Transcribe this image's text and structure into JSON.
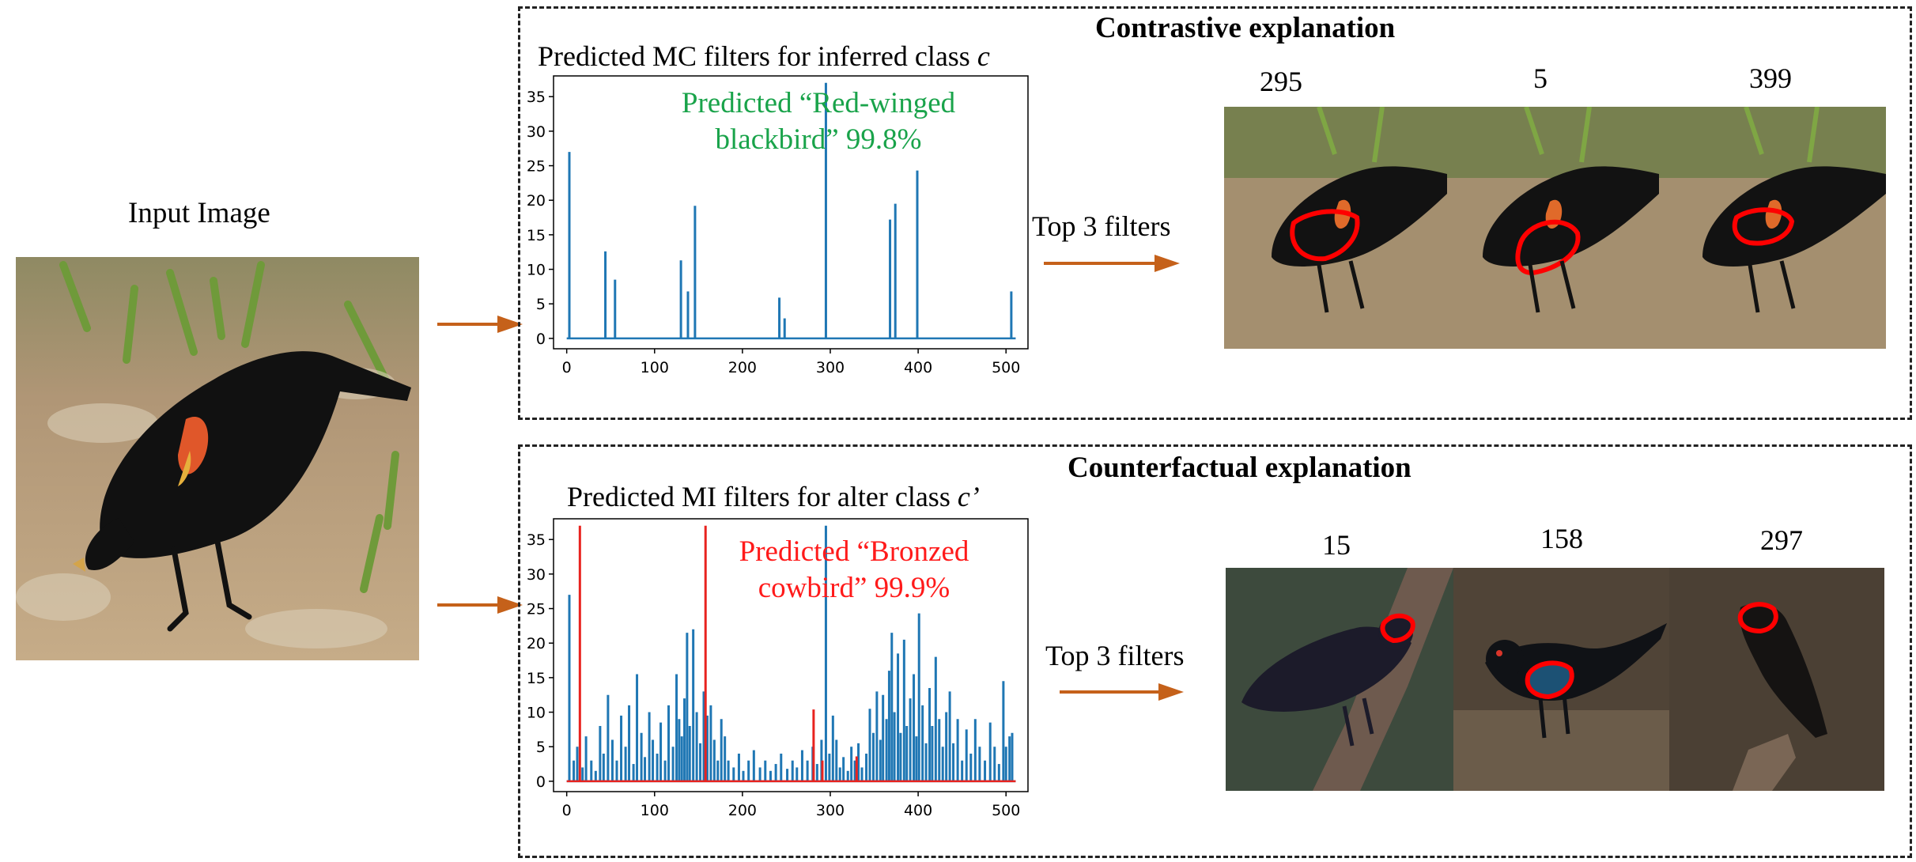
{
  "input": {
    "label": "Input Image"
  },
  "contrastive": {
    "title": "Contrastive explanation",
    "chart_heading": "Predicted MC filters for inferred class",
    "chart_heading_symbol": "c",
    "prediction_line1": "Predicted “Red-winged",
    "prediction_line2": "blackbird” 99.8%",
    "prediction_color": "#19a34a",
    "top_label": "Top 3 filters",
    "filters": [
      "295",
      "5",
      "399"
    ]
  },
  "counterfactual": {
    "title": "Counterfactual explanation",
    "chart_heading": "Predicted MI filters for alter class",
    "chart_heading_symbol": "c’",
    "prediction_line1": "Predicted “Bronzed",
    "prediction_line2": "cowbird” 99.9%",
    "prediction_color": "#ff1a1a",
    "top_label": "Top 3 filters",
    "filters": [
      "15",
      "158",
      "297"
    ]
  },
  "colors": {
    "series_blue": "#1f77b4",
    "series_red": "#e8231f",
    "arrow": "#c5611a",
    "outline": "#ff0000"
  },
  "chart_data": [
    {
      "type": "bar",
      "xticks": [
        "0",
        "100",
        "200",
        "300",
        "400",
        "500"
      ],
      "yticks": [
        "0",
        "5",
        "10",
        "15",
        "20",
        "25",
        "30",
        "35"
      ],
      "xlim": [
        -15,
        525
      ],
      "ylim": [
        -1.5,
        38
      ],
      "series": [
        {
          "color": "#1f77b4",
          "points": [
            [
              3,
              27
            ],
            [
              44,
              12.6
            ],
            [
              55,
              8.5
            ],
            [
              130,
              11.3
            ],
            [
              138,
              6.8
            ],
            [
              146,
              19.2
            ],
            [
              242,
              5.9
            ],
            [
              248,
              2.9
            ],
            [
              295,
              37
            ],
            [
              368,
              17.2
            ],
            [
              374,
              19.5
            ],
            [
              399,
              24.3
            ],
            [
              506,
              6.8
            ]
          ]
        }
      ]
    },
    {
      "type": "bar",
      "xticks": [
        "0",
        "100",
        "200",
        "300",
        "400",
        "500"
      ],
      "yticks": [
        "0",
        "5",
        "10",
        "15",
        "20",
        "25",
        "30",
        "35"
      ],
      "xlim": [
        -15,
        525
      ],
      "ylim": [
        -1.5,
        38
      ],
      "series": [
        {
          "color": "#1f77b4",
          "points": [
            [
              3,
              27
            ],
            [
              8,
              3
            ],
            [
              12,
              5
            ],
            [
              18,
              2
            ],
            [
              22,
              6.5
            ],
            [
              28,
              3
            ],
            [
              33,
              1.5
            ],
            [
              38,
              8
            ],
            [
              42,
              4
            ],
            [
              47,
              12.5
            ],
            [
              52,
              6
            ],
            [
              57,
              3
            ],
            [
              62,
              9.5
            ],
            [
              67,
              5
            ],
            [
              71,
              11
            ],
            [
              76,
              2.5
            ],
            [
              80,
              15.5
            ],
            [
              85,
              7
            ],
            [
              89,
              3.5
            ],
            [
              94,
              10
            ],
            [
              98,
              6
            ],
            [
              103,
              4
            ],
            [
              107,
              8.5
            ],
            [
              112,
              3
            ],
            [
              116,
              11
            ],
            [
              121,
              5
            ],
            [
              125,
              15.5
            ],
            [
              128,
              9
            ],
            [
              131,
              6.5
            ],
            [
              134,
              12
            ],
            [
              137,
              21.5
            ],
            [
              140,
              8
            ],
            [
              144,
              22
            ],
            [
              148,
              10
            ],
            [
              152,
              5.5
            ],
            [
              156,
              13
            ],
            [
              160,
              9.5
            ],
            [
              164,
              11
            ],
            [
              168,
              6
            ],
            [
              172,
              3
            ],
            [
              176,
              9
            ],
            [
              180,
              6.5
            ],
            [
              184,
              3
            ],
            [
              190,
              2
            ],
            [
              196,
              4
            ],
            [
              201,
              1.5
            ],
            [
              207,
              3
            ],
            [
              213,
              4.5
            ],
            [
              220,
              2
            ],
            [
              226,
              3
            ],
            [
              232,
              1.5
            ],
            [
              238,
              2.5
            ],
            [
              244,
              4
            ],
            [
              251,
              1.8
            ],
            [
              257,
              3
            ],
            [
              262,
              2
            ],
            [
              268,
              4.5
            ],
            [
              274,
              3
            ],
            [
              280,
              5
            ],
            [
              285,
              2.5
            ],
            [
              290,
              6
            ],
            [
              295,
              37
            ],
            [
              299,
              4
            ],
            [
              303,
              9.5
            ],
            [
              307,
              6
            ],
            [
              311,
              2
            ],
            [
              315,
              3.5
            ],
            [
              320,
              1.5
            ],
            [
              324,
              5
            ],
            [
              328,
              3
            ],
            [
              332,
              5.5
            ],
            [
              336,
              2
            ],
            [
              341,
              4
            ],
            [
              345,
              10.5
            ],
            [
              349,
              7
            ],
            [
              353,
              13
            ],
            [
              357,
              6
            ],
            [
              360,
              12.5
            ],
            [
              364,
              9
            ],
            [
              367,
              16
            ],
            [
              370,
              21.5
            ],
            [
              373,
              10
            ],
            [
              377,
              18.5
            ],
            [
              380,
              7
            ],
            [
              384,
              20.5
            ],
            [
              387,
              8
            ],
            [
              391,
              12
            ],
            [
              395,
              15.5
            ],
            [
              398,
              6.5
            ],
            [
              401,
              24.3
            ],
            [
              405,
              11
            ],
            [
              409,
              5.5
            ],
            [
              413,
              13.5
            ],
            [
              416,
              8
            ],
            [
              420,
              18
            ],
            [
              424,
              9
            ],
            [
              428,
              5
            ],
            [
              432,
              10
            ],
            [
              436,
              13
            ],
            [
              440,
              5.5
            ],
            [
              445,
              9
            ],
            [
              450,
              3
            ],
            [
              455,
              7.5
            ],
            [
              460,
              4
            ],
            [
              465,
              9
            ],
            [
              470,
              5
            ],
            [
              476,
              3
            ],
            [
              482,
              8.5
            ],
            [
              487,
              5
            ],
            [
              492,
              2.5
            ],
            [
              497,
              14.5
            ],
            [
              500,
              5
            ],
            [
              504,
              6.5
            ],
            [
              507,
              7
            ]
          ]
        },
        {
          "color": "#e8231f",
          "points": [
            [
              15,
              37
            ],
            [
              158,
              37
            ],
            [
              281,
              10.4
            ],
            [
              291,
              3
            ],
            [
              330,
              3.6
            ]
          ]
        }
      ]
    }
  ]
}
